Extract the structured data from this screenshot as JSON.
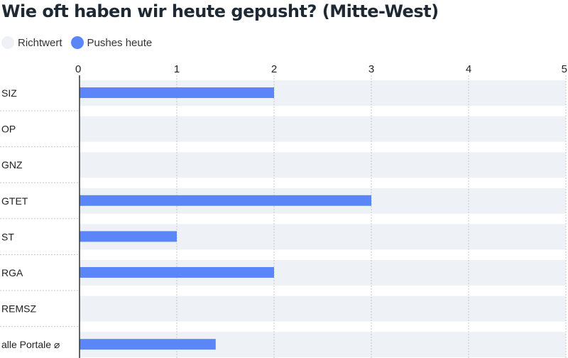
{
  "chart_data": {
    "type": "bar",
    "orientation": "horizontal",
    "title": "Wie oft haben wir heute gepusht? (Mitte-West)",
    "categories": [
      "SIZ",
      "OP",
      "GNZ",
      "GTET",
      "ST",
      "RGA",
      "REMSZ",
      "alle Portale ⌀"
    ],
    "series": [
      {
        "name": "Richtwert",
        "values": [
          5,
          5,
          5,
          5,
          5,
          5,
          5,
          5
        ]
      },
      {
        "name": "Pushes heute",
        "values": [
          2,
          0,
          0,
          3,
          1,
          2,
          0,
          1.4
        ]
      }
    ],
    "xlim": [
      0,
      5
    ],
    "xticks": [
      "0",
      "1",
      "2",
      "3",
      "4",
      "5"
    ],
    "xlabel": "",
    "ylabel": "",
    "grid": true,
    "legend": "top-left",
    "colors": {
      "Richtwert": "#eef1f5",
      "Pushes heute": "#5b86f7",
      "grid": "#c8c8c8",
      "axis": "#333333"
    }
  },
  "legend_labels": [
    "Richtwert",
    "Pushes heute"
  ]
}
